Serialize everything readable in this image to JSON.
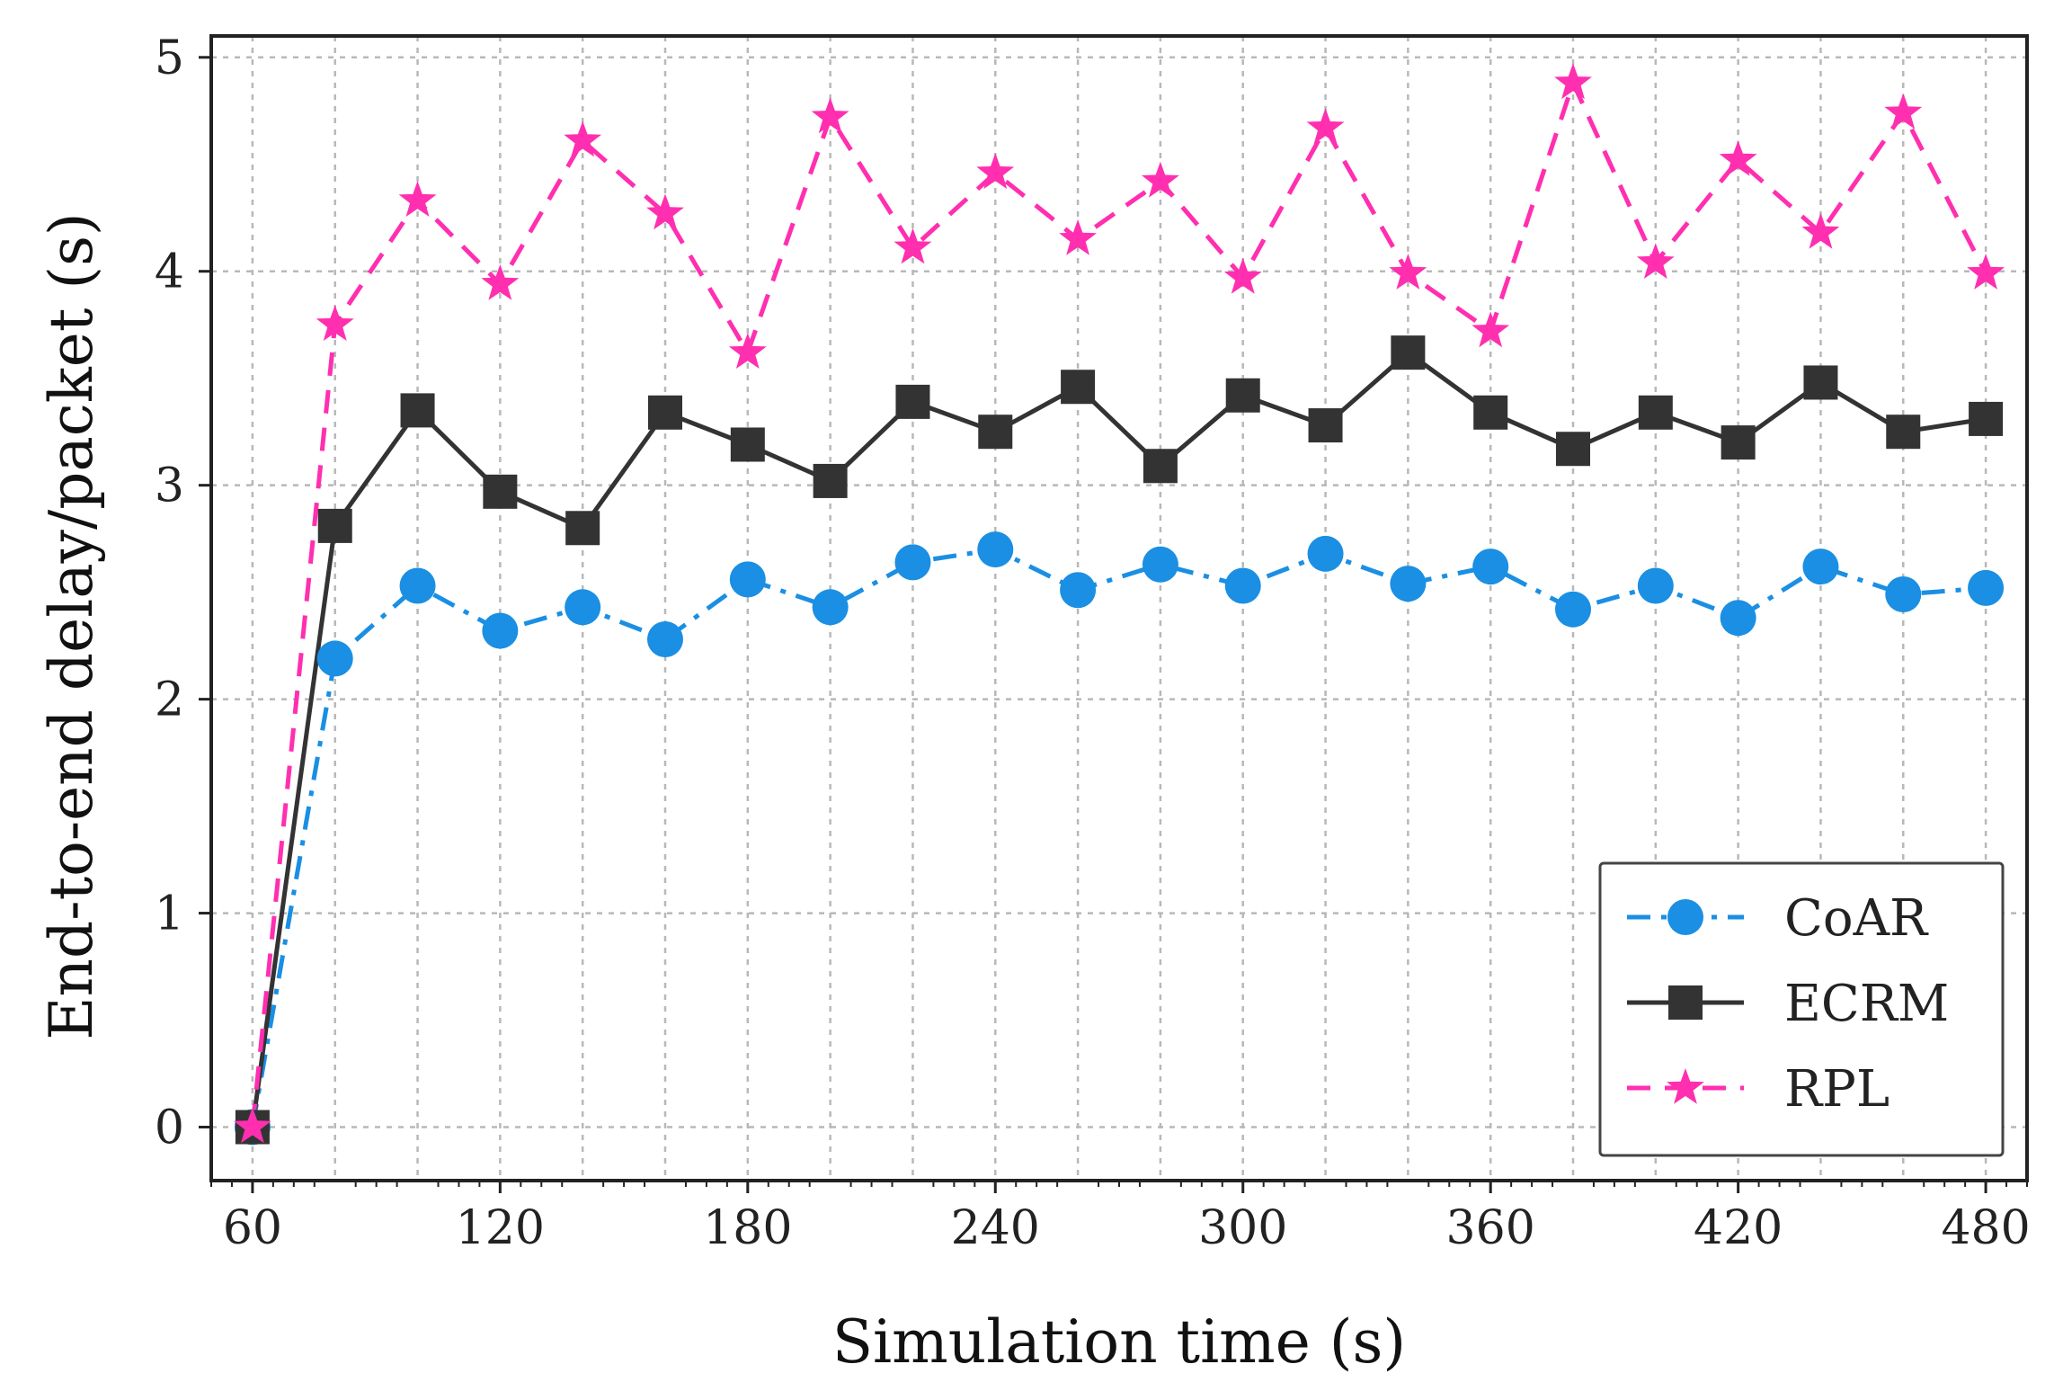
{
  "chart_data": {
    "type": "line",
    "title": "",
    "xlabel": "Simulation time (s)",
    "ylabel": "End-to-end delay/packet (s)",
    "xlim": [
      50,
      490
    ],
    "ylim": [
      -0.25,
      5.1
    ],
    "xticks": [
      60,
      120,
      180,
      240,
      300,
      360,
      420,
      480
    ],
    "yticks": [
      0,
      1,
      2,
      3,
      4,
      5
    ],
    "grid": true,
    "legend_position": "lower-right",
    "x": [
      60,
      80,
      100,
      120,
      140,
      160,
      180,
      200,
      220,
      240,
      260,
      280,
      300,
      320,
      340,
      360,
      380,
      400,
      420,
      440,
      460,
      480
    ],
    "series": [
      {
        "name": "CoAR",
        "color": "#1a8fe3",
        "line_style": "dash-dot",
        "marker": "circle",
        "values": [
          0,
          2.19,
          2.53,
          2.32,
          2.43,
          2.28,
          2.56,
          2.43,
          2.64,
          2.7,
          2.51,
          2.63,
          2.53,
          2.68,
          2.54,
          2.62,
          2.42,
          2.53,
          2.38,
          2.62,
          2.49,
          2.52
        ]
      },
      {
        "name": "ECRM",
        "color": "#333333",
        "line_style": "solid",
        "marker": "square",
        "values": [
          0,
          2.81,
          3.35,
          2.97,
          2.8,
          3.34,
          3.19,
          3.02,
          3.39,
          3.25,
          3.46,
          3.09,
          3.42,
          3.28,
          3.62,
          3.34,
          3.17,
          3.34,
          3.2,
          3.48,
          3.25,
          3.31
        ]
      },
      {
        "name": "RPL",
        "color": "#ff2fb0",
        "line_style": "dashed",
        "marker": "star",
        "values": [
          0,
          3.75,
          4.33,
          3.94,
          4.61,
          4.27,
          3.62,
          4.72,
          4.11,
          4.46,
          4.15,
          4.42,
          3.97,
          4.67,
          3.99,
          3.72,
          4.88,
          4.04,
          4.52,
          4.18,
          4.74,
          3.99
        ]
      }
    ]
  }
}
